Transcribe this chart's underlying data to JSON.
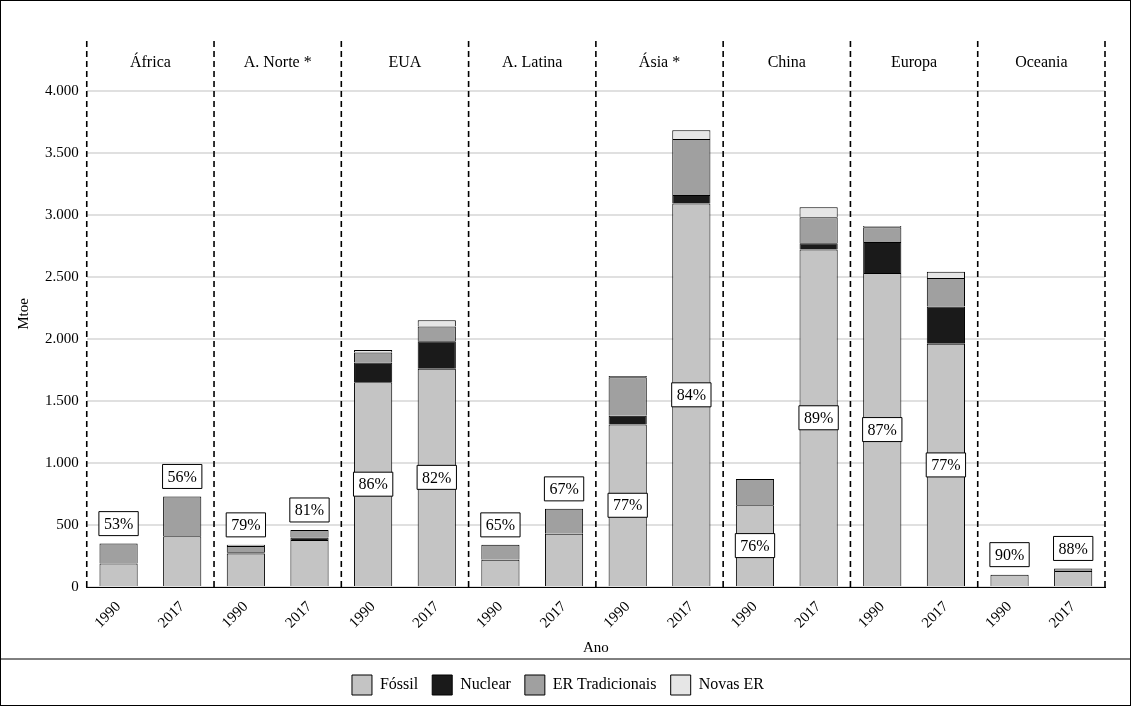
{
  "chart_data": {
    "type": "bar",
    "stacked": true,
    "xlabel": "Ano",
    "ylabel": "Mtoe",
    "categories": [
      "1990",
      "2017",
      "1990",
      "2017",
      "1990",
      "2017",
      "1990",
      "2017",
      "1990",
      "2017",
      "1990",
      "2017",
      "1990",
      "2017",
      "1990",
      "2017"
    ],
    "annotations": [
      "África",
      "A. Norte *",
      "EUA",
      "A. Latina",
      "Ásia *",
      "China",
      "Europa",
      "Oceania",
      "53%",
      "56%",
      "79%",
      "81%",
      "86%",
      "82%",
      "65%",
      "67%",
      "77%",
      "84%",
      "76%",
      "89%",
      "87%",
      "77%",
      "90%",
      "88%"
    ],
    "series": [
      {
        "name": "Fóssil",
        "color": "#c4c4c4",
        "values": [
          190,
          410,
          270,
          380,
          1650,
          1760,
          220,
          430,
          1310,
          3090,
          660,
          2720,
          2530,
          1960,
          100,
          130
        ]
      },
      {
        "name": "Nuclear",
        "color": "#1a1a1a",
        "values": [
          0,
          0,
          10,
          20,
          160,
          220,
          0,
          0,
          70,
          70,
          0,
          50,
          250,
          300,
          0,
          0
        ]
      },
      {
        "name": "ER Tradicionais",
        "color": "#a0a0a0",
        "values": [
          160,
          320,
          50,
          60,
          80,
          120,
          120,
          200,
          310,
          450,
          210,
          210,
          120,
          230,
          null,
          20
        ]
      },
      {
        "name": "Novas ER",
        "color": "#e6e6e6",
        "values": [
          0,
          0,
          10,
          null,
          20,
          50,
          0,
          null,
          10,
          70,
          0,
          80,
          10,
          50,
          0,
          0
        ]
      }
    ],
    "ylim": [
      0,
      4400
    ],
    "yticks": [
      0,
      {
        "value": 500,
        "label": "500"
      },
      {
        "value": 1000,
        "label": "1.000"
      },
      {
        "value": 1500,
        "label": "1.500"
      },
      {
        "value": 2000,
        "label": "2.000"
      },
      {
        "value": 2500,
        "label": "2.500"
      },
      {
        "value": 3000,
        "label": "3.000"
      },
      {
        "value": 3500,
        "label": "3.500"
      },
      {
        "value": 4000,
        "label": "4.000"
      }
    ],
    "grid": "y",
    "legend": "bottom"
  }
}
